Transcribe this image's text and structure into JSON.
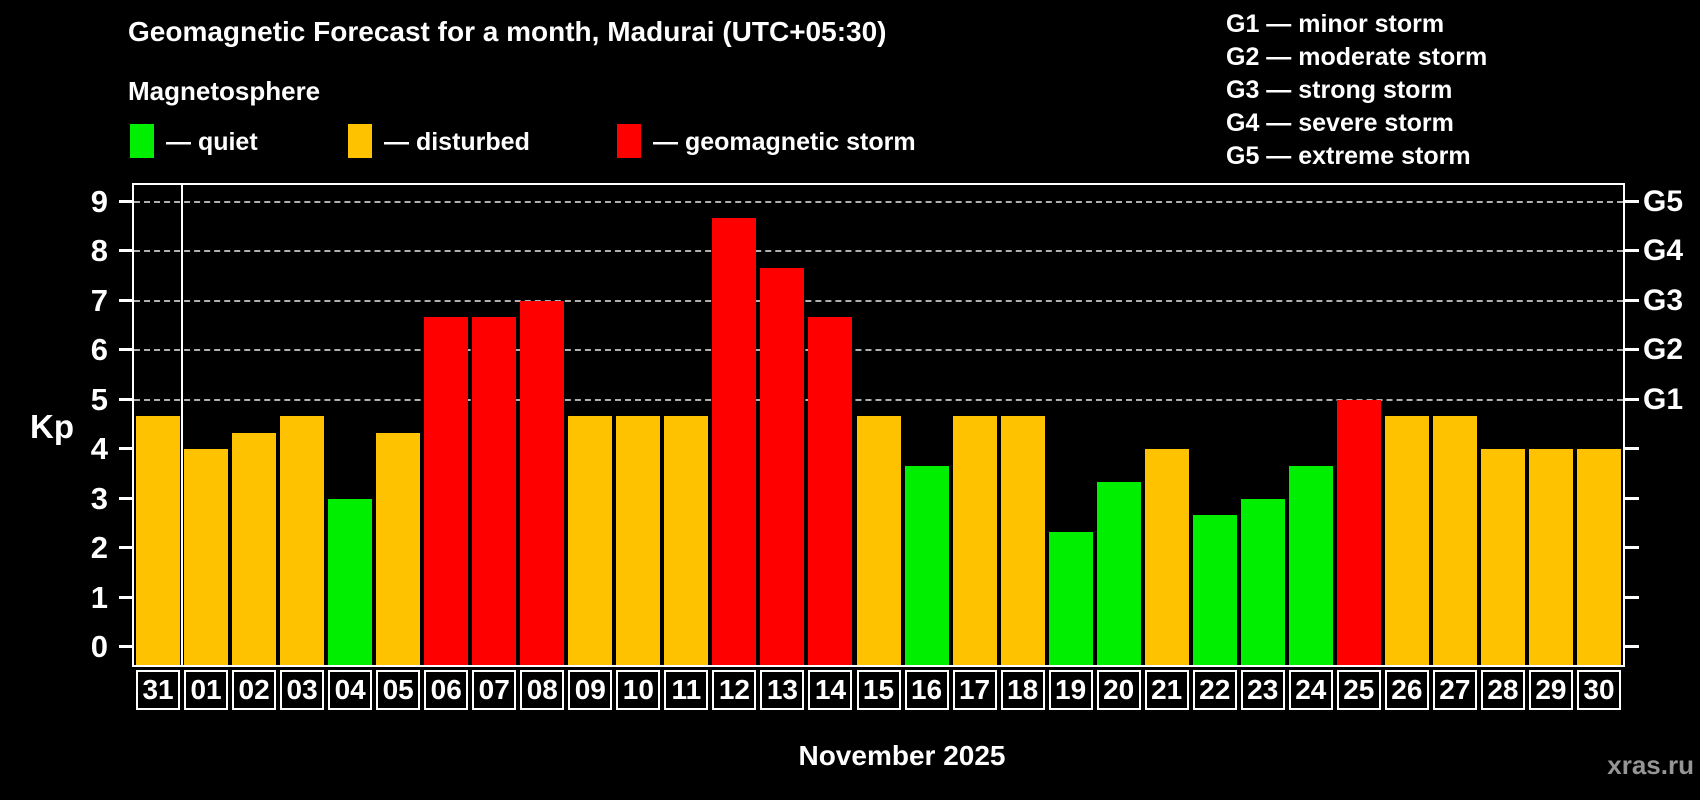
{
  "header": {
    "title": "Geomagnetic Forecast for a month, Madurai (UTC+05:30)",
    "subtitle": "Magnetosphere"
  },
  "legend": {
    "items": [
      {
        "key": "quiet",
        "label": "— quiet",
        "color": "#00ee00"
      },
      {
        "key": "disturbed",
        "label": "— disturbed",
        "color": "#ffc200"
      },
      {
        "key": "storm",
        "label": "— geomagnetic storm",
        "color": "#ff0000"
      }
    ]
  },
  "g_legend": [
    "G1 — minor storm",
    "G2 — moderate storm",
    "G3 — strong storm",
    "G4 — severe storm",
    "G5 — extreme storm"
  ],
  "colors": {
    "quiet": "#00ee00",
    "disturbed": "#ffc200",
    "storm": "#ff0000",
    "gridline": "#b0b0b0",
    "axis": "#ffffff",
    "background": "#000000",
    "watermark_text": "#969696"
  },
  "chart_data": {
    "type": "bar",
    "title": "Geomagnetic Forecast for a month, Madurai (UTC+05:30)",
    "subtitle": "Magnetosphere",
    "xlabel": "November 2025",
    "ylabel": "Kp",
    "ylim": [
      0,
      9
    ],
    "yticks": [
      0,
      1,
      2,
      3,
      4,
      5,
      6,
      7,
      8,
      9
    ],
    "grid": "dashed horizontal at Kp 5-9",
    "grid_lines_at": [
      5,
      6,
      7,
      8,
      9
    ],
    "legend_position": "top-left",
    "right_axis": [
      {
        "label": "G1",
        "kp": 5
      },
      {
        "label": "G2",
        "kp": 6
      },
      {
        "label": "G3",
        "kp": 7
      },
      {
        "label": "G4",
        "kp": 8
      },
      {
        "label": "G5",
        "kp": 9
      }
    ],
    "categories": [
      "31",
      "01",
      "02",
      "03",
      "04",
      "05",
      "06",
      "07",
      "08",
      "09",
      "10",
      "11",
      "12",
      "13",
      "14",
      "15",
      "16",
      "17",
      "18",
      "19",
      "20",
      "21",
      "22",
      "23",
      "24",
      "25",
      "26",
      "27",
      "28",
      "29",
      "30"
    ],
    "values": [
      4.67,
      4.0,
      4.33,
      4.67,
      3.0,
      4.33,
      6.67,
      6.67,
      7.0,
      4.67,
      4.67,
      4.67,
      8.67,
      7.67,
      6.67,
      4.67,
      3.67,
      4.67,
      4.67,
      2.33,
      3.33,
      4.0,
      2.67,
      3.0,
      3.67,
      5.0,
      4.67,
      4.67,
      4.0,
      4.0,
      4.0
    ],
    "status": [
      "disturbed",
      "disturbed",
      "disturbed",
      "disturbed",
      "quiet",
      "disturbed",
      "storm",
      "storm",
      "storm",
      "disturbed",
      "disturbed",
      "disturbed",
      "storm",
      "storm",
      "storm",
      "disturbed",
      "quiet",
      "disturbed",
      "disturbed",
      "quiet",
      "quiet",
      "disturbed",
      "quiet",
      "quiet",
      "quiet",
      "storm",
      "disturbed",
      "disturbed",
      "disturbed",
      "disturbed",
      "disturbed"
    ]
  },
  "footer": {
    "month_label": "November 2025",
    "watermark": "xras.ru"
  }
}
